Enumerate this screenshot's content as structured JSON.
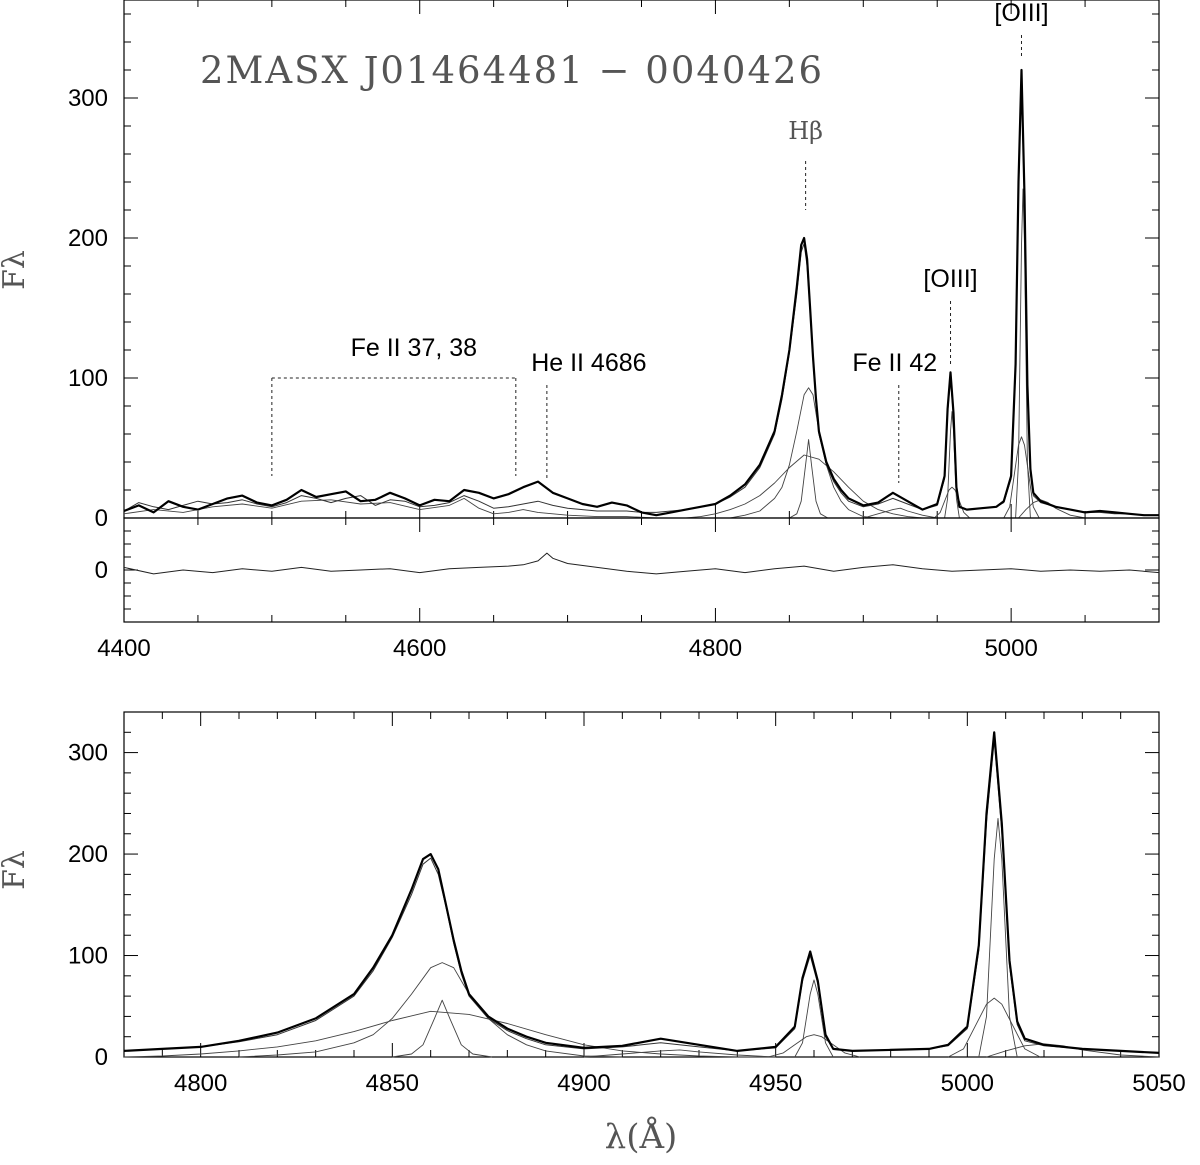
{
  "object_name": "2MASX J01464481 − 0040426",
  "chart_data": [
    {
      "id": "full_spectrum",
      "type": "line",
      "xlabel": "",
      "ylabel": "Fλ",
      "xlim": [
        4400,
        5100
      ],
      "ylim": [
        0,
        370
      ],
      "x_ticks": [
        4400,
        4600,
        4800,
        5000
      ],
      "y_ticks": [
        0,
        100,
        200,
        300
      ],
      "grid": false,
      "series": [
        {
          "role": "observed",
          "x": [
            4400,
            4410,
            4420,
            4430,
            4440,
            4450,
            4460,
            4470,
            4480,
            4490,
            4500,
            4510,
            4520,
            4530,
            4540,
            4550,
            4560,
            4570,
            4580,
            4590,
            4600,
            4610,
            4620,
            4630,
            4640,
            4650,
            4660,
            4670,
            4680,
            4690,
            4700,
            4710,
            4720,
            4730,
            4740,
            4750,
            4760,
            4770,
            4780,
            4790,
            4800,
            4810,
            4820,
            4830,
            4840,
            4845,
            4850,
            4855,
            4858,
            4860,
            4862,
            4864,
            4866,
            4868,
            4870,
            4875,
            4880,
            4885,
            4890,
            4900,
            4910,
            4920,
            4930,
            4940,
            4950,
            4955,
            4957,
            4959,
            4961,
            4963,
            4965,
            4970,
            4980,
            4990,
            4995,
            5000,
            5003,
            5005,
            5007,
            5009,
            5011,
            5013,
            5015,
            5020,
            5030,
            5040,
            5050,
            5060,
            5070,
            5080,
            5090,
            5100
          ],
          "y": [
            5,
            9,
            4,
            12,
            8,
            6,
            10,
            14,
            16,
            11,
            9,
            13,
            20,
            15,
            17,
            19,
            12,
            13,
            18,
            14,
            9,
            13,
            12,
            20,
            18,
            14,
            17,
            22,
            26,
            18,
            14,
            10,
            8,
            11,
            9,
            4,
            2,
            4,
            6,
            8,
            10,
            16,
            24,
            38,
            62,
            88,
            120,
            165,
            195,
            200,
            185,
            150,
            115,
            85,
            62,
            40,
            28,
            20,
            14,
            9,
            11,
            18,
            12,
            6,
            10,
            30,
            78,
            104,
            75,
            22,
            8,
            6,
            7,
            8,
            12,
            30,
            110,
            240,
            320,
            230,
            95,
            35,
            18,
            12,
            8,
            6,
            4,
            5,
            4,
            3,
            2,
            2
          ]
        },
        {
          "role": "model_total",
          "x": [
            4400,
            4410,
            4420,
            4430,
            4440,
            4450,
            4460,
            4470,
            4480,
            4490,
            4500,
            4510,
            4520,
            4530,
            4540,
            4550,
            4560,
            4570,
            4580,
            4590,
            4600,
            4610,
            4620,
            4630,
            4640,
            4650,
            4660,
            4670,
            4680,
            4690,
            4700,
            4710,
            4720,
            4730,
            4740,
            4750,
            4760,
            4770,
            4780,
            4790,
            4800,
            4810,
            4820,
            4830,
            4840,
            4845,
            4850,
            4855,
            4858,
            4860,
            4862,
            4864,
            4866,
            4868,
            4870,
            4875,
            4880,
            4885,
            4890,
            4900,
            4910,
            4920,
            4930,
            4940,
            4950,
            4955,
            4957,
            4959,
            4961,
            4963,
            4965,
            4970,
            4980,
            4990,
            4995,
            5000,
            5003,
            5005,
            5007,
            5009,
            5011,
            5013,
            5015,
            5020,
            5030,
            5040,
            5050,
            5060,
            5070,
            5080,
            5090,
            5100
          ],
          "y": [
            5,
            11,
            8,
            6,
            9,
            12,
            10,
            11,
            13,
            10,
            8,
            11,
            16,
            14,
            11,
            14,
            16,
            9,
            13,
            12,
            8,
            9,
            11,
            16,
            12,
            7,
            8,
            10,
            12,
            9,
            7,
            6,
            5,
            5,
            5,
            4,
            4,
            5,
            6,
            8,
            10,
            15,
            22,
            36,
            60,
            85,
            118,
            160,
            190,
            196,
            180,
            148,
            112,
            82,
            60,
            38,
            26,
            18,
            12,
            8,
            10,
            14,
            10,
            6,
            9,
            28,
            75,
            100,
            72,
            20,
            8,
            6,
            7,
            8,
            11,
            28,
            105,
            232,
            312,
            222,
            90,
            32,
            16,
            11,
            8,
            6,
            4,
            4,
            3,
            3,
            2,
            2
          ]
        },
        {
          "role": "Fe II template",
          "x": [
            4400,
            4420,
            4440,
            4460,
            4480,
            4500,
            4520,
            4540,
            4560,
            4580,
            4600,
            4620,
            4630,
            4640,
            4650,
            4660,
            4670,
            4680,
            4700,
            4720,
            4740,
            4760,
            4780
          ],
          "y": [
            3,
            6,
            4,
            8,
            10,
            7,
            12,
            13,
            10,
            11,
            6,
            9,
            14,
            7,
            3,
            4,
            6,
            4,
            2,
            1,
            1,
            0,
            0
          ]
        },
        {
          "role": "broad Hbeta",
          "x": [
            4780,
            4790,
            4800,
            4810,
            4820,
            4830,
            4840,
            4850,
            4860,
            4870,
            4880,
            4890,
            4900,
            4910,
            4920,
            4930,
            4940,
            4950
          ],
          "y": [
            0,
            1,
            3,
            6,
            10,
            16,
            25,
            36,
            45,
            42,
            33,
            22,
            12,
            6,
            3,
            1,
            0,
            0
          ]
        },
        {
          "role": "intermediate Hbeta",
          "x": [
            4810,
            4820,
            4830,
            4840,
            4845,
            4850,
            4855,
            4860,
            4863,
            4866,
            4870,
            4875,
            4880,
            4885,
            4890,
            4900,
            4910
          ],
          "y": [
            0,
            2,
            5,
            14,
            22,
            38,
            62,
            88,
            93,
            88,
            62,
            38,
            22,
            12,
            6,
            1,
            0
          ]
        },
        {
          "role": "narrow Hbeta",
          "x": [
            4850,
            4855,
            4858,
            4861,
            4863,
            4865,
            4868,
            4871,
            4876
          ],
          "y": [
            0,
            3,
            12,
            38,
            56,
            38,
            12,
            3,
            0
          ]
        },
        {
          "role": "Fe II 42 component",
          "x": [
            4900,
            4910,
            4920,
            4925,
            4930,
            4940,
            4950
          ],
          "y": [
            0,
            3,
            6,
            7,
            5,
            2,
            0
          ]
        },
        {
          "role": "OIII 4959 broad",
          "x": [
            4948,
            4952,
            4955,
            4958,
            4960,
            4962,
            4965,
            4968,
            4972
          ],
          "y": [
            0,
            4,
            12,
            20,
            22,
            20,
            12,
            4,
            0
          ]
        },
        {
          "role": "OIII 4959 narrow",
          "x": [
            4955,
            4957,
            4959,
            4960,
            4961,
            4963,
            4965
          ],
          "y": [
            0,
            14,
            62,
            76,
            62,
            14,
            0
          ]
        },
        {
          "role": "OIII 5007 broad",
          "x": [
            4995,
            4999,
            5002,
            5005,
            5007,
            5009,
            5012,
            5015,
            5019
          ],
          "y": [
            0,
            8,
            30,
            52,
            58,
            52,
            30,
            8,
            0
          ]
        },
        {
          "role": "OIII 5007 narrow",
          "x": [
            5003,
            5005,
            5007,
            5008,
            5009,
            5011,
            5013
          ],
          "y": [
            0,
            40,
            195,
            235,
            195,
            40,
            0
          ]
        },
        {
          "role": "red wing",
          "x": [
            5005,
            5010,
            5015,
            5020,
            5025,
            5030,
            5040,
            5050
          ],
          "y": [
            0,
            6,
            11,
            13,
            11,
            7,
            2,
            0
          ]
        }
      ],
      "annotations": [
        {
          "text": "Fe II 37, 38",
          "x1": 4500,
          "x2": 4665,
          "y_bracket": 100,
          "y_bottom": 30
        },
        {
          "text": "He II 4686",
          "x": 4686,
          "y_top": 95,
          "y_bottom": 28
        },
        {
          "text": "Hβ",
          "x": 4861,
          "y_top": 255,
          "y_bottom": 220
        },
        {
          "text": "Fe II 42",
          "x": 4924,
          "y_top": 95,
          "y_bottom": 25
        },
        {
          "text": "[OIII]",
          "x": 4959,
          "y_top": 155,
          "y_bottom": 110
        },
        {
          "text": "[OIII]",
          "x": 5007,
          "y_top": 345,
          "y_bottom": 330
        }
      ]
    },
    {
      "id": "residuals",
      "type": "line",
      "xlim": [
        4400,
        5100
      ],
      "ylim": [
        -40,
        40
      ],
      "y_ticks": [
        0
      ],
      "series": [
        {
          "role": "residual",
          "x": [
            4400,
            4420,
            4440,
            4460,
            4480,
            4500,
            4520,
            4540,
            4560,
            4580,
            4600,
            4620,
            4640,
            4660,
            4670,
            4680,
            4686,
            4690,
            4700,
            4720,
            4740,
            4760,
            4780,
            4800,
            4820,
            4840,
            4860,
            4880,
            4900,
            4920,
            4940,
            4960,
            4980,
            5000,
            5020,
            5040,
            5060,
            5080,
            5100
          ],
          "y": [
            2,
            -3,
            0,
            -2,
            1,
            -1,
            2,
            -1,
            0,
            1,
            -2,
            1,
            2,
            3,
            4,
            7,
            13,
            9,
            5,
            2,
            -1,
            -3,
            -1,
            1,
            -2,
            1,
            3,
            -1,
            2,
            4,
            1,
            -1,
            0,
            1,
            -1,
            0,
            -1,
            0,
            -2
          ]
        }
      ]
    },
    {
      "id": "zoom",
      "type": "line",
      "xlabel": "λ(Å)",
      "ylabel": "Fλ",
      "xlim": [
        4780,
        5050
      ],
      "ylim": [
        0,
        340
      ],
      "x_ticks": [
        4800,
        4850,
        4900,
        4950,
        5000,
        5050
      ],
      "y_ticks": [
        0,
        100,
        200,
        300
      ],
      "grid": false,
      "uses_series_from": "full_spectrum"
    }
  ]
}
